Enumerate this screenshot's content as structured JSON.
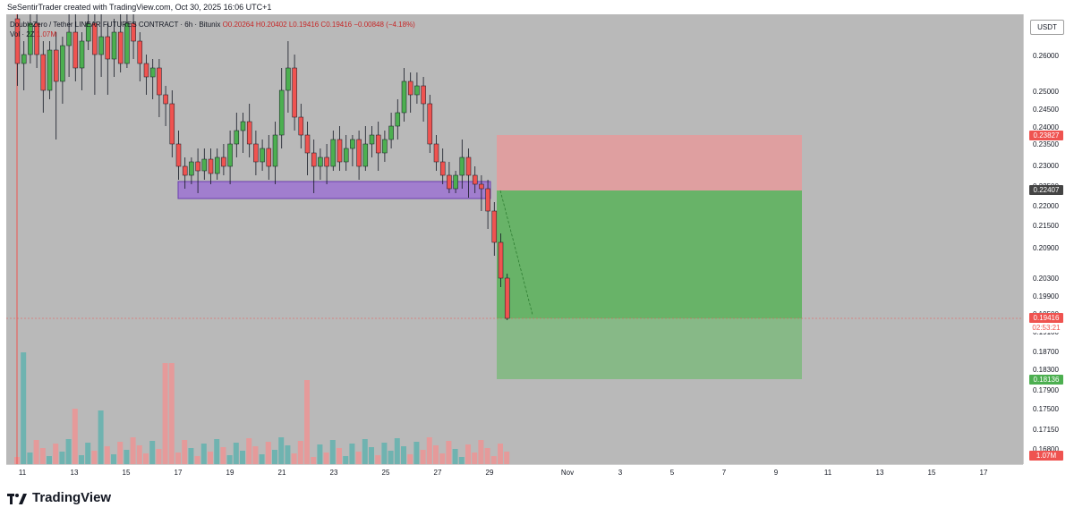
{
  "header": {
    "caption": "SeSentirTrader created with TradingView.com, Oct 30, 2025 16:06 UTC+1"
  },
  "legend": {
    "symbol": "DoubleZero / Tether LINEAR FUTURES CONTRACT · 6h · Bitunix",
    "ohlc": "O0.20264 H0.20402 L0.19416 C0.19416 −0.00848 (−4.18%)",
    "volume_label": "Vol · 2Z",
    "volume_value": "1.07M"
  },
  "price_axis": {
    "currency_button": "USDT",
    "ticks": [
      "0.26000",
      "0.25000",
      "0.24500",
      "0.24000",
      "0.23500",
      "0.23000",
      "0.22500",
      "0.22000",
      "0.21500",
      "0.20900",
      "0.20300",
      "0.19900",
      "0.19500",
      "0.19100",
      "0.18700",
      "0.18300",
      "0.17900",
      "0.17500",
      "0.17150",
      "0.16800"
    ],
    "badges": {
      "stop": "0.23827",
      "entry": "0.22407",
      "current_price": "0.19416",
      "countdown": "02:53:21",
      "target": "0.18136",
      "volume": "1.07M"
    }
  },
  "time_axis": {
    "labels": [
      "11",
      "13",
      "15",
      "17",
      "19",
      "21",
      "23",
      "25",
      "27",
      "29",
      "Nov",
      "3",
      "5",
      "7",
      "9",
      "11",
      "13",
      "15",
      "17"
    ]
  },
  "position_tool": {
    "stop_color": "#e8999a",
    "target_color": "#5fb35f",
    "support_zone_color": "#9a6bd6"
  },
  "colors": {
    "bull": "#4caf50",
    "bear": "#ef5350",
    "background": "#b9b9b9"
  },
  "brand": {
    "name": "TradingView"
  }
}
